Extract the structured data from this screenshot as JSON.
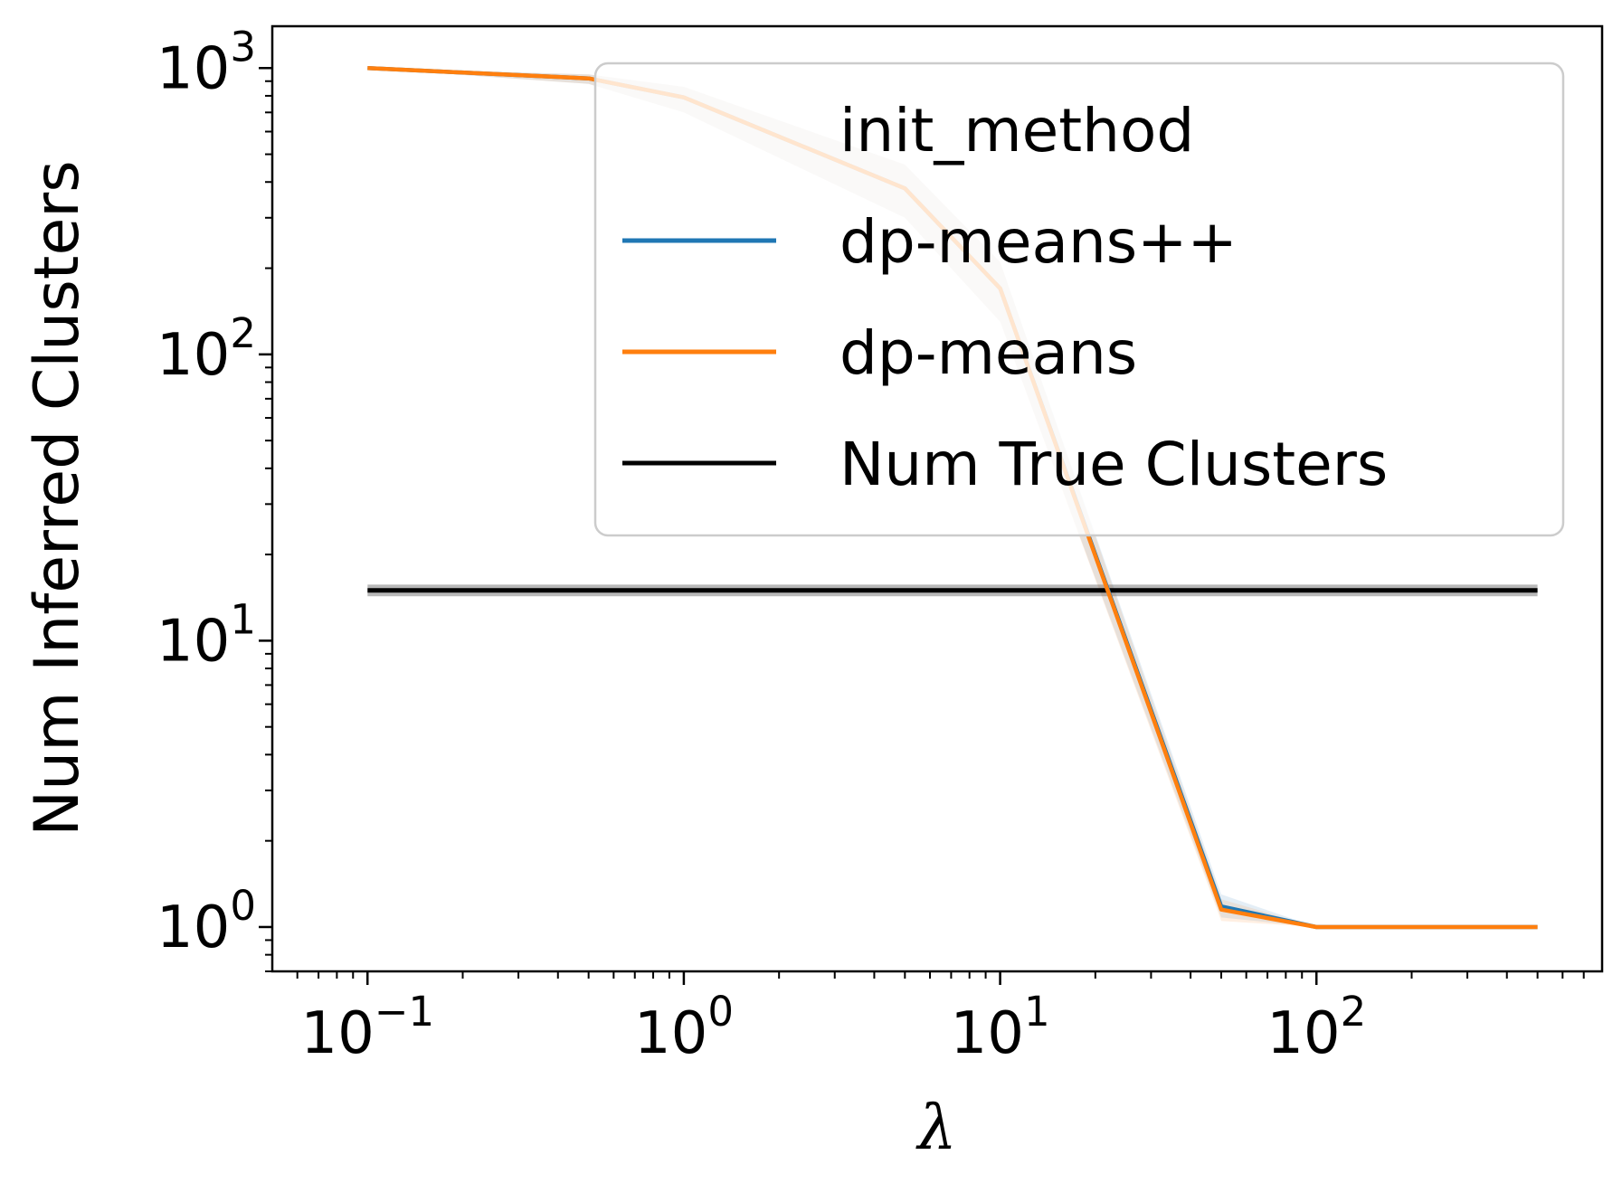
{
  "chart_data": {
    "type": "line",
    "xlabel": "λ",
    "ylabel": "Num Inferred Clusters",
    "xscale": "log",
    "yscale": "log",
    "xlim": [
      0.05,
      800
    ],
    "ylim": [
      0.7,
      1400
    ],
    "x_ticks": [
      {
        "base": "10",
        "exp": "−1",
        "value": 0.1
      },
      {
        "base": "10",
        "exp": "0",
        "value": 1
      },
      {
        "base": "10",
        "exp": "1",
        "value": 10
      },
      {
        "base": "10",
        "exp": "2",
        "value": 100
      }
    ],
    "y_ticks": [
      {
        "base": "10",
        "exp": "0",
        "value": 1
      },
      {
        "base": "10",
        "exp": "1",
        "value": 10
      },
      {
        "base": "10",
        "exp": "2",
        "value": 100
      },
      {
        "base": "10",
        "exp": "3",
        "value": 1000
      }
    ],
    "grid": false,
    "legend_placement": "upper-right",
    "legend_title": "init_method",
    "x": [
      0.1,
      0.5,
      1,
      5,
      10,
      50,
      100,
      500
    ],
    "series": [
      {
        "name": "dp-means++",
        "color": "#1f77b4",
        "values": [
          1000,
          920,
          790,
          380,
          170,
          1.18,
          1.0,
          1.0
        ],
        "band_lower": [
          1000,
          880,
          700,
          300,
          130,
          1.08,
          1.0,
          1.0
        ],
        "band_upper": [
          1000,
          950,
          860,
          460,
          210,
          1.3,
          1.0,
          1.0
        ]
      },
      {
        "name": "dp-means",
        "color": "#ff7f0e",
        "values": [
          1000,
          920,
          790,
          380,
          170,
          1.15,
          1.0,
          1.0
        ],
        "band_lower": [
          1000,
          880,
          700,
          300,
          130,
          1.05,
          1.0,
          1.0
        ],
        "band_upper": [
          1000,
          950,
          860,
          460,
          210,
          1.25,
          1.0,
          1.0
        ]
      },
      {
        "name": "Num True Clusters",
        "color": "#000000",
        "values": [
          15,
          15,
          15,
          15,
          15,
          15,
          15,
          15
        ],
        "band_lower": [
          14.3,
          14.3,
          14.3,
          14.3,
          14.3,
          14.3,
          14.3,
          14.3
        ],
        "band_upper": [
          15.7,
          15.7,
          15.7,
          15.7,
          15.7,
          15.7,
          15.7,
          15.7
        ]
      }
    ]
  }
}
